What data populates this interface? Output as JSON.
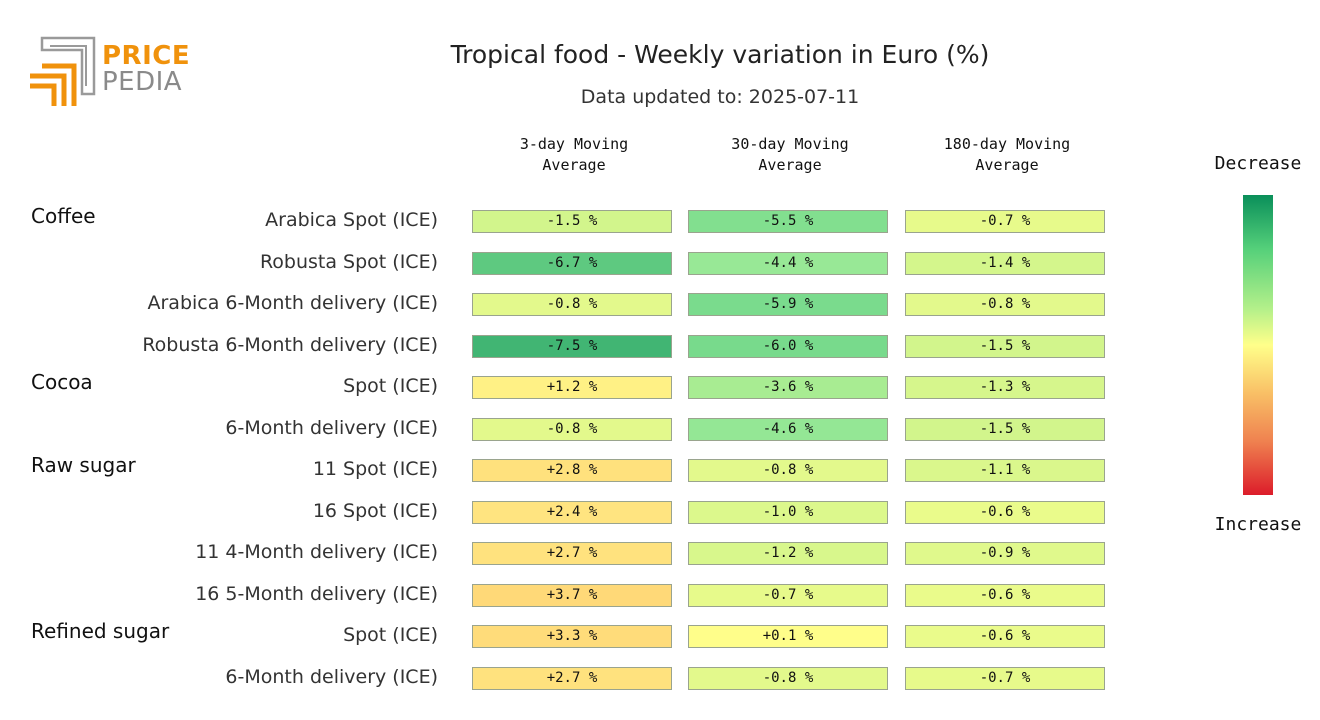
{
  "logo": {
    "line1": "PRICE",
    "line2": "PEDIA"
  },
  "header": {
    "title": "Tropical food - Weekly variation in Euro (%)",
    "subtitle": "Data updated to: 2025-07-11"
  },
  "legend": {
    "top_label": "Decrease",
    "bottom_label": "Increase",
    "colors": {
      "decrease": "#0a8f5a",
      "neutral": "#ffff8a",
      "increase": "#dc1c2a"
    }
  },
  "chart_data": {
    "type": "heatmap",
    "title": "Tropical food - Weekly variation in Euro (%)",
    "subtitle": "Data updated to: 2025-07-11",
    "columns": [
      "3-day Moving\nAverage",
      "30-day Moving\nAverage",
      "180-day Moving\nAverage"
    ],
    "groups": [
      {
        "name": "Coffee",
        "start_row": 0
      },
      {
        "name": "Cocoa",
        "start_row": 4
      },
      {
        "name": "Raw sugar",
        "start_row": 6
      },
      {
        "name": "Refined sugar",
        "start_row": 10
      }
    ],
    "rows": [
      {
        "label": "Arabica Spot (ICE)",
        "values": [
          -1.5,
          -5.5,
          -0.7
        ],
        "texts": [
          "-1.5 %",
          "-5.5 %",
          "-0.7 %"
        ]
      },
      {
        "label": "Robusta Spot (ICE)",
        "values": [
          -6.7,
          -4.4,
          -1.4
        ],
        "texts": [
          "-6.7 %",
          "-4.4 %",
          "-1.4 %"
        ]
      },
      {
        "label": "Arabica 6-Month delivery (ICE)",
        "values": [
          -0.8,
          -5.9,
          -0.8
        ],
        "texts": [
          "-0.8 %",
          "-5.9 %",
          "-0.8 %"
        ]
      },
      {
        "label": "Robusta 6-Month delivery (ICE)",
        "values": [
          -7.5,
          -6.0,
          -1.5
        ],
        "texts": [
          "-7.5 %",
          "-6.0 %",
          "-1.5 %"
        ]
      },
      {
        "label": "Spot (ICE)",
        "values": [
          1.2,
          -3.6,
          -1.3
        ],
        "texts": [
          "+1.2 %",
          "-3.6 %",
          "-1.3 %"
        ]
      },
      {
        "label": "6-Month delivery (ICE)",
        "values": [
          -0.8,
          -4.6,
          -1.5
        ],
        "texts": [
          "-0.8 %",
          "-4.6 %",
          "-1.5 %"
        ]
      },
      {
        "label": "11 Spot (ICE)",
        "values": [
          2.8,
          -0.8,
          -1.1
        ],
        "texts": [
          "+2.8 %",
          "-0.8 %",
          "-1.1 %"
        ]
      },
      {
        "label": "16 Spot (ICE)",
        "values": [
          2.4,
          -1.0,
          -0.6
        ],
        "texts": [
          "+2.4 %",
          "-1.0 %",
          "-0.6 %"
        ]
      },
      {
        "label": "11 4-Month delivery (ICE)",
        "values": [
          2.7,
          -1.2,
          -0.9
        ],
        "texts": [
          "+2.7 %",
          "-1.2 %",
          "-0.9 %"
        ]
      },
      {
        "label": "16 5-Month delivery (ICE)",
        "values": [
          3.7,
          -0.7,
          -0.6
        ],
        "texts": [
          "+3.7 %",
          "-0.7 %",
          "-0.6 %"
        ]
      },
      {
        "label": "Spot (ICE)",
        "values": [
          3.3,
          0.1,
          -0.6
        ],
        "texts": [
          "+3.3 %",
          "+0.1 %",
          "-0.6 %"
        ]
      },
      {
        "label": "6-Month delivery (ICE)",
        "values": [
          2.7,
          -0.8,
          -0.7
        ],
        "texts": [
          "+2.7 %",
          "-0.8 %",
          "-0.7 %"
        ]
      }
    ]
  }
}
